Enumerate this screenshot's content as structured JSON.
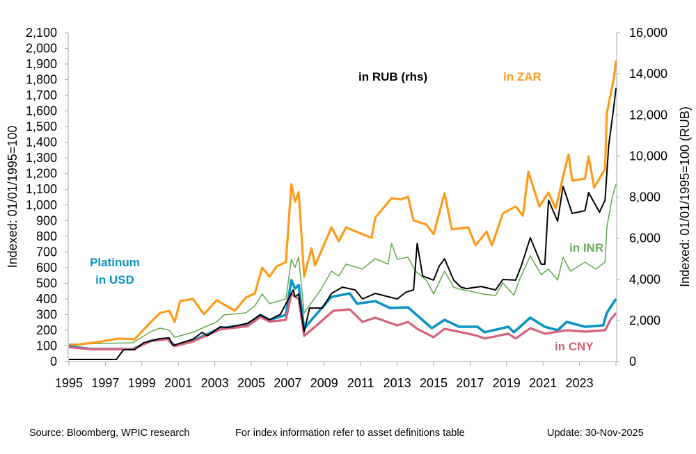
{
  "chart_data": {
    "type": "line",
    "xlabel": "",
    "ylabel": "Indexed:  01/01/1995=100",
    "ylabel_right": "Indexed:  01/01/1995=100  (RUB)",
    "xlim": [
      1995,
      2025
    ],
    "ylim": [
      0,
      2100
    ],
    "ylim_right": [
      0,
      16000
    ],
    "x_ticks": [
      "1995",
      "1997",
      "1999",
      "2001",
      "2003",
      "2005",
      "2007",
      "2009",
      "2011",
      "2013",
      "2015",
      "2017",
      "2019",
      "2021",
      "2023"
    ],
    "y_ticks": [
      "0",
      "100",
      "200",
      "300",
      "400",
      "500",
      "600",
      "700",
      "800",
      "900",
      "1,000",
      "1,100",
      "1,200",
      "1,300",
      "1,400",
      "1,500",
      "1,600",
      "1,700",
      "1,800",
      "1,900",
      "2,000",
      "2,100"
    ],
    "y_ticks_right": [
      "0",
      "2,000",
      "4,000",
      "6,000",
      "8,000",
      "10,000",
      "12,000",
      "14,000",
      "16,000"
    ],
    "grid": false,
    "series": [
      {
        "name": "in ZAR",
        "label": "in ZAR",
        "axis": "left",
        "color": "#FF9B1A",
        "points": [
          [
            1995.0,
            102
          ],
          [
            1996.6,
            124
          ],
          [
            1997.7,
            147
          ],
          [
            1998.6,
            142
          ],
          [
            1999.5,
            253
          ],
          [
            2000.0,
            311
          ],
          [
            2000.5,
            324
          ],
          [
            2000.8,
            253
          ],
          [
            2001.1,
            386
          ],
          [
            2001.8,
            400
          ],
          [
            2002.4,
            302
          ],
          [
            2003.1,
            391
          ],
          [
            2004.1,
            324
          ],
          [
            2004.7,
            408
          ],
          [
            2005.2,
            435
          ],
          [
            2005.6,
            600
          ],
          [
            2006.0,
            542
          ],
          [
            2006.4,
            608
          ],
          [
            2006.9,
            635
          ],
          [
            2007.2,
            1132
          ],
          [
            2007.4,
            1021
          ],
          [
            2007.6,
            1080
          ],
          [
            2007.9,
            542
          ],
          [
            2008.3,
            724
          ],
          [
            2008.5,
            613
          ],
          [
            2009.4,
            857
          ],
          [
            2009.8,
            768
          ],
          [
            2010.2,
            857
          ],
          [
            2011.1,
            813
          ],
          [
            2011.6,
            790
          ],
          [
            2011.8,
            919
          ],
          [
            2012.7,
            1044
          ],
          [
            2013.2,
            1035
          ],
          [
            2013.6,
            1052
          ],
          [
            2013.9,
            901
          ],
          [
            2014.6,
            875
          ],
          [
            2015.0,
            813
          ],
          [
            2015.6,
            1075
          ],
          [
            2016.0,
            844
          ],
          [
            2016.9,
            857
          ],
          [
            2017.3,
            742
          ],
          [
            2017.9,
            830
          ],
          [
            2018.2,
            742
          ],
          [
            2018.8,
            946
          ],
          [
            2019.5,
            990
          ],
          [
            2019.9,
            932
          ],
          [
            2020.2,
            1212
          ],
          [
            2020.8,
            990
          ],
          [
            2021.3,
            1079
          ],
          [
            2021.7,
            977
          ],
          [
            2022.2,
            1230
          ],
          [
            2022.4,
            1323
          ],
          [
            2022.6,
            1155
          ],
          [
            2023.3,
            1168
          ],
          [
            2023.5,
            1310
          ],
          [
            2023.8,
            1110
          ],
          [
            2024.4,
            1230
          ],
          [
            2024.5,
            1585
          ],
          [
            2024.9,
            1820
          ],
          [
            2025.0,
            1923
          ]
        ]
      },
      {
        "name": "in RUB (rhs)",
        "label": "in RUB (rhs)",
        "axis": "right",
        "color": "#000000",
        "points": [
          [
            1995.0,
            101
          ],
          [
            1997.6,
            101
          ],
          [
            1998.0,
            575
          ],
          [
            1998.6,
            575
          ],
          [
            1999.1,
            913
          ],
          [
            2000.0,
            1116
          ],
          [
            2000.5,
            1150
          ],
          [
            2000.7,
            778
          ],
          [
            2001.8,
            1083
          ],
          [
            2002.3,
            1420
          ],
          [
            2002.6,
            1250
          ],
          [
            2003.3,
            1690
          ],
          [
            2003.7,
            1650
          ],
          [
            2004.8,
            1860
          ],
          [
            2005.5,
            2267
          ],
          [
            2006.0,
            2030
          ],
          [
            2006.6,
            2300
          ],
          [
            2007.3,
            3485
          ],
          [
            2007.4,
            3146
          ],
          [
            2007.6,
            3280
          ],
          [
            2007.9,
            1455
          ],
          [
            2008.2,
            2600
          ],
          [
            2008.9,
            2600
          ],
          [
            2009.4,
            3315
          ],
          [
            2010.0,
            3620
          ],
          [
            2010.7,
            3485
          ],
          [
            2011.1,
            3045
          ],
          [
            2011.8,
            3315
          ],
          [
            2013.0,
            3045
          ],
          [
            2013.5,
            3383
          ],
          [
            2013.9,
            3485
          ],
          [
            2014.1,
            5750
          ],
          [
            2014.4,
            4160
          ],
          [
            2015.0,
            3960
          ],
          [
            2015.3,
            4635
          ],
          [
            2015.6,
            5000
          ],
          [
            2016.1,
            3960
          ],
          [
            2016.5,
            3620
          ],
          [
            2016.8,
            3550
          ],
          [
            2017.6,
            3650
          ],
          [
            2018.4,
            3485
          ],
          [
            2018.8,
            3990
          ],
          [
            2019.5,
            3960
          ],
          [
            2019.8,
            4635
          ],
          [
            2020.3,
            6020
          ],
          [
            2020.9,
            4735
          ],
          [
            2021.1,
            4735
          ],
          [
            2021.3,
            7850
          ],
          [
            2021.8,
            6830
          ],
          [
            2022.1,
            8525
          ],
          [
            2022.6,
            7205
          ],
          [
            2023.3,
            7340
          ],
          [
            2023.5,
            8220
          ],
          [
            2024.1,
            7270
          ],
          [
            2024.4,
            7850
          ],
          [
            2024.6,
            10490
          ],
          [
            2024.9,
            12520
          ],
          [
            2025.0,
            13300
          ]
        ]
      },
      {
        "name": "in INR",
        "label": "in INR",
        "axis": "left",
        "color": "#6BAA55",
        "points": [
          [
            1995.0,
            111
          ],
          [
            1998.5,
            120
          ],
          [
            1999.5,
            191
          ],
          [
            2000.0,
            213
          ],
          [
            2000.5,
            200
          ],
          [
            2000.8,
            155
          ],
          [
            2001.8,
            187
          ],
          [
            2003.1,
            253
          ],
          [
            2003.5,
            298
          ],
          [
            2004.7,
            311
          ],
          [
            2005.2,
            355
          ],
          [
            2005.6,
            431
          ],
          [
            2006.0,
            369
          ],
          [
            2006.9,
            400
          ],
          [
            2007.2,
            653
          ],
          [
            2007.4,
            600
          ],
          [
            2007.6,
            666
          ],
          [
            2007.9,
            311
          ],
          [
            2008.8,
            457
          ],
          [
            2009.4,
            577
          ],
          [
            2009.8,
            546
          ],
          [
            2010.2,
            622
          ],
          [
            2011.1,
            591
          ],
          [
            2011.8,
            657
          ],
          [
            2012.5,
            622
          ],
          [
            2012.7,
            755
          ],
          [
            2013.0,
            653
          ],
          [
            2013.6,
            666
          ],
          [
            2014.0,
            577
          ],
          [
            2014.6,
            520
          ],
          [
            2015.0,
            431
          ],
          [
            2015.6,
            577
          ],
          [
            2016.1,
            475
          ],
          [
            2016.3,
            466
          ],
          [
            2017.7,
            431
          ],
          [
            2018.4,
            422
          ],
          [
            2018.8,
            502
          ],
          [
            2019.4,
            422
          ],
          [
            2019.7,
            520
          ],
          [
            2020.3,
            675
          ],
          [
            2020.9,
            555
          ],
          [
            2021.3,
            591
          ],
          [
            2021.8,
            520
          ],
          [
            2022.1,
            666
          ],
          [
            2022.5,
            577
          ],
          [
            2023.3,
            635
          ],
          [
            2023.9,
            591
          ],
          [
            2024.4,
            635
          ],
          [
            2024.5,
            857
          ],
          [
            2024.8,
            1052
          ],
          [
            2025.0,
            1132
          ]
        ]
      },
      {
        "name": "Platinum in USD",
        "label": "Platinum\nin USD",
        "axis": "left",
        "color": "#0B93C4",
        "points": [
          [
            1995.0,
            98
          ],
          [
            1996.2,
            80
          ],
          [
            1998.5,
            80
          ],
          [
            1999.5,
            133
          ],
          [
            2000.4,
            147
          ],
          [
            2000.8,
            102
          ],
          [
            2001.8,
            133
          ],
          [
            2003.3,
            213
          ],
          [
            2004.8,
            235
          ],
          [
            2005.5,
            298
          ],
          [
            2006.0,
            266
          ],
          [
            2006.9,
            298
          ],
          [
            2007.2,
            520
          ],
          [
            2007.4,
            466
          ],
          [
            2007.6,
            488
          ],
          [
            2007.9,
            209
          ],
          [
            2008.3,
            266
          ],
          [
            2009.4,
            413
          ],
          [
            2010.4,
            435
          ],
          [
            2010.8,
            369
          ],
          [
            2011.8,
            386
          ],
          [
            2012.6,
            342
          ],
          [
            2013.6,
            346
          ],
          [
            2014.9,
            213
          ],
          [
            2015.6,
            266
          ],
          [
            2016.4,
            222
          ],
          [
            2017.4,
            222
          ],
          [
            2017.8,
            187
          ],
          [
            2019.1,
            222
          ],
          [
            2019.4,
            187
          ],
          [
            2020.3,
            280
          ],
          [
            2021.1,
            222
          ],
          [
            2021.8,
            200
          ],
          [
            2022.3,
            253
          ],
          [
            2023.3,
            222
          ],
          [
            2024.3,
            231
          ],
          [
            2024.5,
            311
          ],
          [
            2025.0,
            400
          ]
        ]
      },
      {
        "name": "in CNY",
        "label": "in CNY",
        "axis": "left",
        "color": "#D4627A",
        "points": [
          [
            1995.0,
            92
          ],
          [
            1996.2,
            78
          ],
          [
            1998.5,
            78
          ],
          [
            1999.5,
            130
          ],
          [
            2000.4,
            143
          ],
          [
            2000.8,
            98
          ],
          [
            2001.8,
            128
          ],
          [
            2003.3,
            205
          ],
          [
            2004.8,
            226
          ],
          [
            2005.5,
            285
          ],
          [
            2006.0,
            255
          ],
          [
            2006.9,
            266
          ],
          [
            2007.2,
            431
          ],
          [
            2007.6,
            400
          ],
          [
            2007.9,
            164
          ],
          [
            2008.5,
            222
          ],
          [
            2009.5,
            324
          ],
          [
            2010.4,
            333
          ],
          [
            2011.1,
            253
          ],
          [
            2011.8,
            280
          ],
          [
            2013.0,
            231
          ],
          [
            2013.6,
            253
          ],
          [
            2014.1,
            209
          ],
          [
            2015.0,
            155
          ],
          [
            2015.6,
            209
          ],
          [
            2017.4,
            164
          ],
          [
            2016.9,
            178
          ],
          [
            2017.8,
            147
          ],
          [
            2019.1,
            178
          ],
          [
            2019.5,
            147
          ],
          [
            2020.3,
            213
          ],
          [
            2021.1,
            178
          ],
          [
            2022.3,
            200
          ],
          [
            2023.3,
            191
          ],
          [
            2024.4,
            200
          ],
          [
            2024.7,
            266
          ],
          [
            2025.0,
            311
          ]
        ]
      }
    ]
  },
  "footer": {
    "source": "Source: Bloomberg, WPIC research",
    "note": "For index information refer to asset definitions table",
    "update": "Update: 30-Nov-2025"
  }
}
